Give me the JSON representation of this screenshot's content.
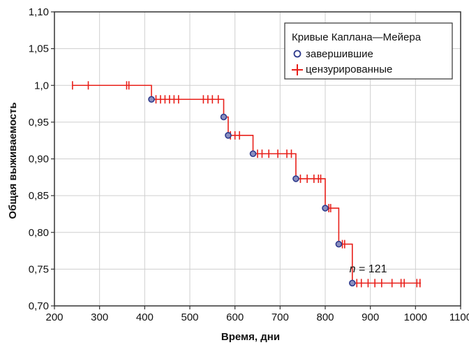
{
  "chart_data": {
    "type": "line",
    "step": true,
    "xlabel": "Время, дни",
    "ylabel": "Общая выживаемость",
    "xlim": [
      200,
      1100
    ],
    "ylim": [
      0.7,
      1.1
    ],
    "xticks": [
      200,
      300,
      400,
      500,
      600,
      700,
      800,
      900,
      1000,
      1100
    ],
    "xtick_labels": [
      "200",
      "300",
      "400",
      "500",
      "600",
      "700",
      "800",
      "900",
      "1000",
      "1100"
    ],
    "yticks": [
      0.7,
      0.75,
      0.8,
      0.85,
      0.9,
      0.95,
      1.0,
      1.05,
      1.1
    ],
    "ytick_labels": [
      "0,70",
      "0,75",
      "0,80",
      "0,85",
      "0,90",
      "0,95",
      "1,0",
      "1,05",
      "1,10"
    ],
    "grid": true,
    "legend": {
      "title": "Кривые Каплана—Мейера",
      "position": "top-right",
      "entries": [
        {
          "label": "завершившие",
          "marker": "circle",
          "color": "#2e3a8c"
        },
        {
          "label": "цензурированные",
          "marker": "plus",
          "color": "#e8201a"
        }
      ]
    },
    "annotation": {
      "italic": "n",
      "rest": " = 121",
      "x": 900,
      "y": 0.738
    },
    "colors": {
      "curve": "#e8201a",
      "event": "#2e3a8c",
      "grid": "#cfcfcf"
    },
    "series": [
      {
        "steps": [
          [
            240,
            1.0
          ],
          [
            415,
            0.981
          ],
          [
            575,
            0.957
          ],
          [
            585,
            0.932
          ],
          [
            640,
            0.907
          ],
          [
            735,
            0.873
          ],
          [
            800,
            0.833
          ],
          [
            830,
            0.784
          ],
          [
            860,
            0.731
          ]
        ],
        "end_x": 1012,
        "events": [
          [
            415,
            0.981
          ],
          [
            575,
            0.957
          ],
          [
            585,
            0.932
          ],
          [
            640,
            0.907
          ],
          [
            735,
            0.873
          ],
          [
            800,
            0.833
          ],
          [
            830,
            0.784
          ],
          [
            860,
            0.731
          ]
        ],
        "censored": [
          [
            240,
            1.0
          ],
          [
            275,
            1.0
          ],
          [
            360,
            1.0
          ],
          [
            365,
            1.0
          ],
          [
            425,
            0.981
          ],
          [
            435,
            0.981
          ],
          [
            445,
            0.981
          ],
          [
            455,
            0.981
          ],
          [
            465,
            0.981
          ],
          [
            475,
            0.981
          ],
          [
            530,
            0.981
          ],
          [
            540,
            0.981
          ],
          [
            550,
            0.981
          ],
          [
            563,
            0.981
          ],
          [
            590,
            0.932
          ],
          [
            600,
            0.932
          ],
          [
            610,
            0.932
          ],
          [
            650,
            0.907
          ],
          [
            660,
            0.907
          ],
          [
            675,
            0.907
          ],
          [
            695,
            0.907
          ],
          [
            715,
            0.907
          ],
          [
            725,
            0.907
          ],
          [
            745,
            0.873
          ],
          [
            760,
            0.873
          ],
          [
            775,
            0.873
          ],
          [
            785,
            0.873
          ],
          [
            790,
            0.873
          ],
          [
            808,
            0.833
          ],
          [
            812,
            0.833
          ],
          [
            838,
            0.784
          ],
          [
            843,
            0.784
          ],
          [
            870,
            0.731
          ],
          [
            880,
            0.731
          ],
          [
            895,
            0.731
          ],
          [
            910,
            0.731
          ],
          [
            925,
            0.731
          ],
          [
            948,
            0.731
          ],
          [
            968,
            0.731
          ],
          [
            975,
            0.731
          ],
          [
            1003,
            0.731
          ],
          [
            1010,
            0.731
          ]
        ]
      }
    ]
  }
}
